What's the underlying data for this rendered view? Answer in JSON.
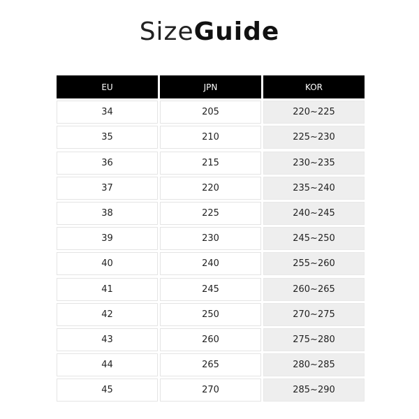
{
  "title": {
    "light": "Size",
    "bold": "Guide"
  },
  "headers": [
    "EU",
    "JPN",
    "KOR"
  ],
  "rows": [
    [
      "34",
      "205",
      "220~225"
    ],
    [
      "35",
      "210",
      "225~230"
    ],
    [
      "36",
      "215",
      "230~235"
    ],
    [
      "37",
      "220",
      "235~240"
    ],
    [
      "38",
      "225",
      "240~245"
    ],
    [
      "39",
      "230",
      "245~250"
    ],
    [
      "40",
      "240",
      "255~260"
    ],
    [
      "41",
      "245",
      "260~265"
    ],
    [
      "42",
      "250",
      "270~275"
    ],
    [
      "43",
      "260",
      "275~280"
    ],
    [
      "44",
      "265",
      "280~285"
    ],
    [
      "45",
      "270",
      "285~290"
    ]
  ],
  "colors": {
    "header_bg": "#000000",
    "header_text": "#ffffff",
    "kor_bg": "#eeeeee"
  }
}
